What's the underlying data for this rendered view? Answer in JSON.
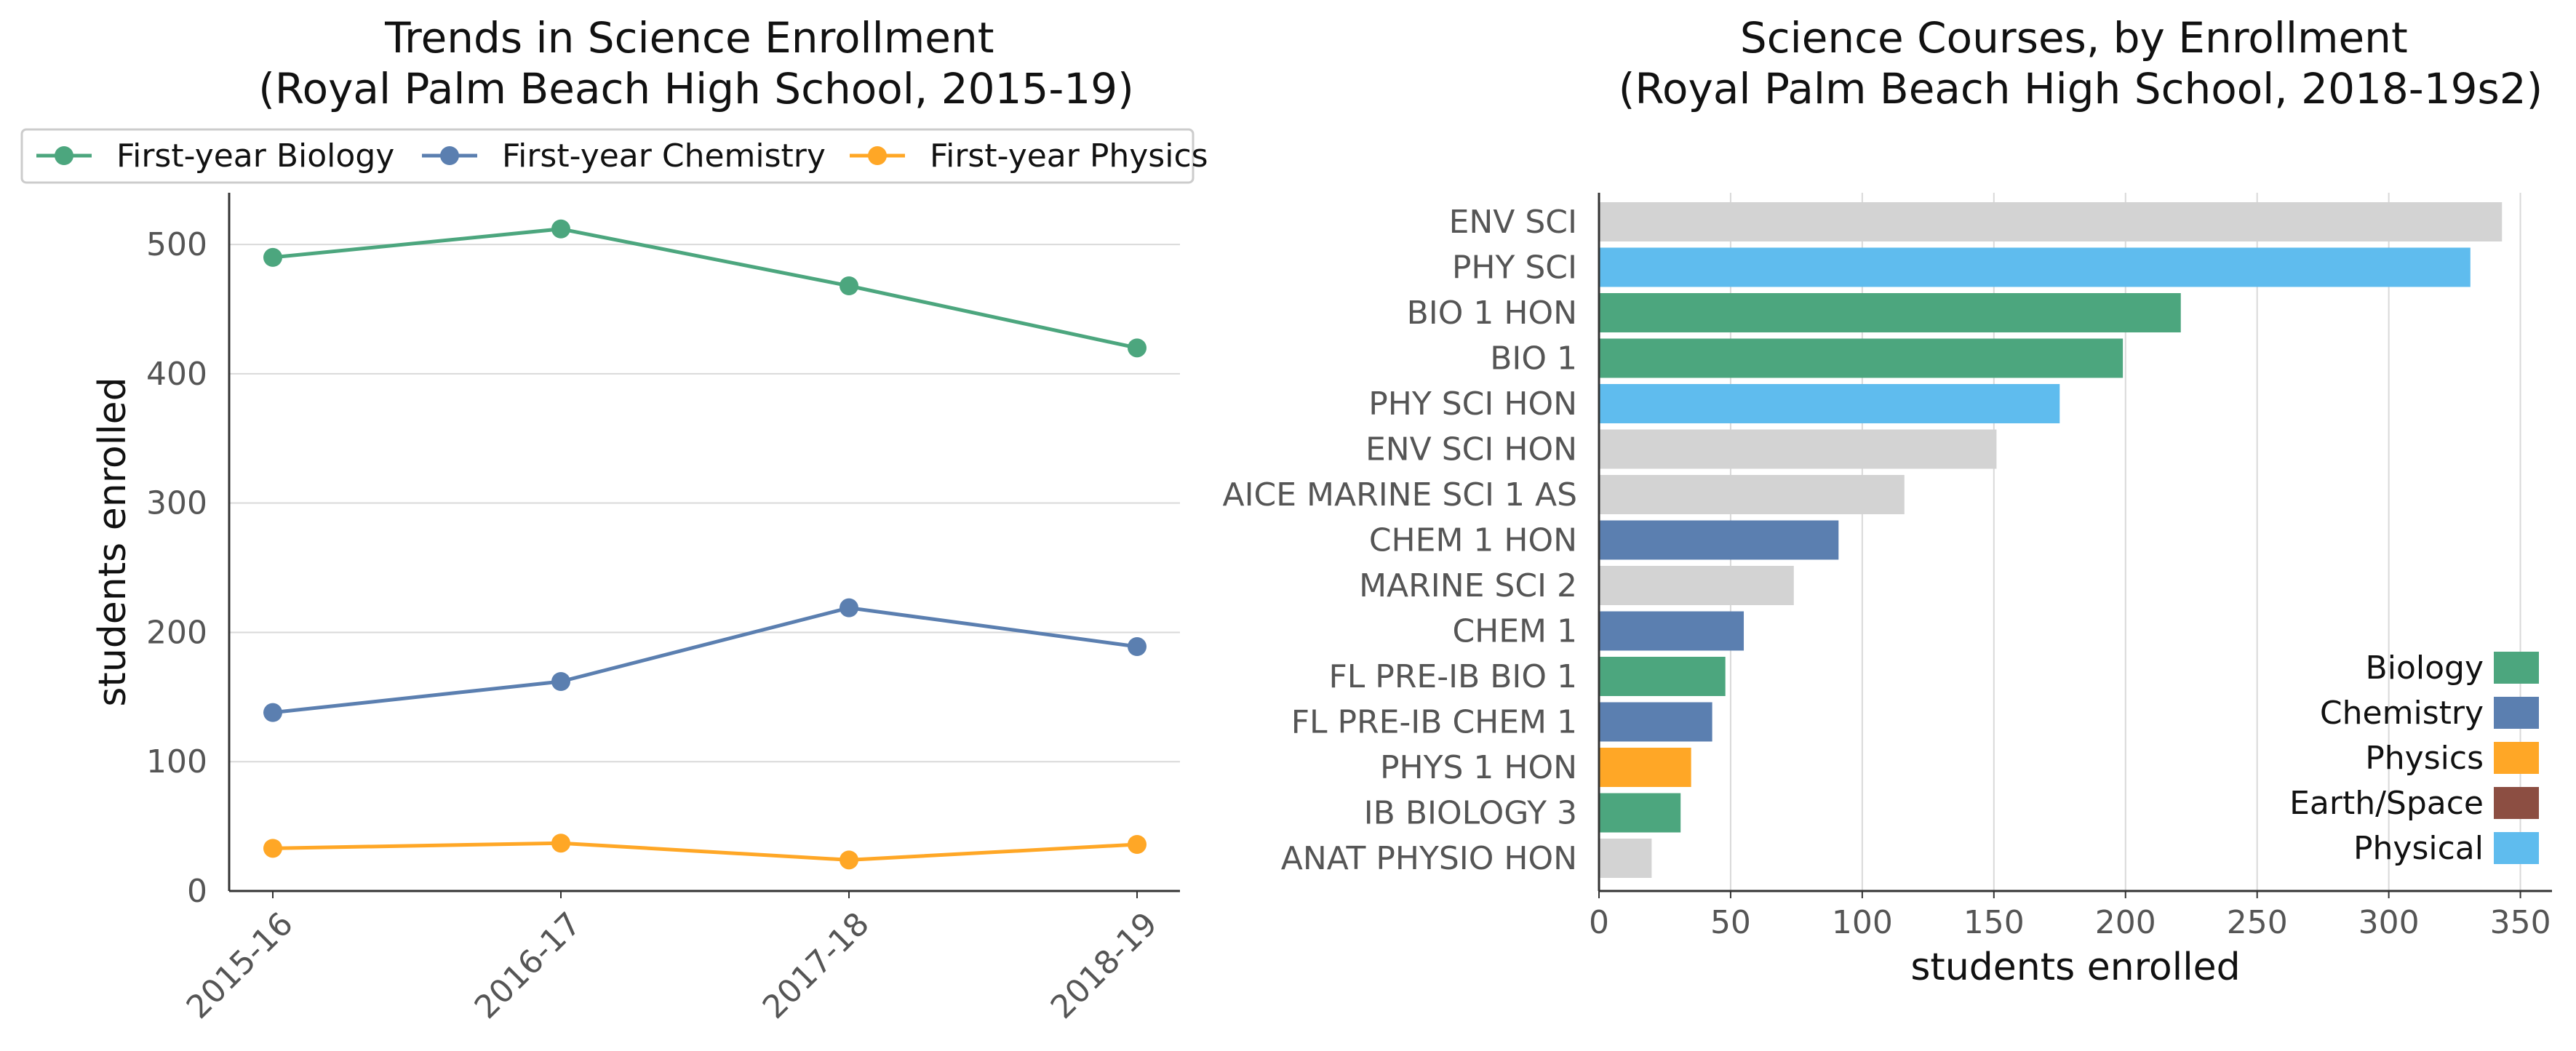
{
  "chart_data": [
    {
      "type": "line",
      "title": "Trends in Science Enrollment\n(Royal Palm Beach High School, 2015-19)",
      "xlabel": "",
      "ylabel": "students enrolled",
      "categories": [
        "2015-16",
        "2016-17",
        "2017-18",
        "2018-19"
      ],
      "ylim": [
        0,
        540
      ],
      "yticks": [
        0,
        100,
        200,
        300,
        400,
        500
      ],
      "grid": "horizontal",
      "legend": "top",
      "series": [
        {
          "name": "First-year Biology",
          "color": "#4ca67e",
          "values": [
            490,
            512,
            468,
            420
          ]
        },
        {
          "name": "First-year Chemistry",
          "color": "#5b7fb0",
          "values": [
            138,
            162,
            219,
            189
          ]
        },
        {
          "name": "First-year Physics",
          "color": "#ffa726",
          "values": [
            33,
            37,
            24,
            36
          ]
        }
      ]
    },
    {
      "type": "bar",
      "orientation": "horizontal",
      "title": "Science Courses, by Enrollment\n(Royal Palm Beach High School, 2018-19s2)",
      "xlabel": "students enrolled",
      "ylabel": "",
      "xlim": [
        0,
        362
      ],
      "xticks": [
        0,
        50,
        100,
        150,
        200,
        250,
        300,
        350
      ],
      "grid": "vertical",
      "legend": "bottom-right",
      "categories": [
        "ENV SCI",
        "PHY SCI",
        "BIO 1 HON",
        "BIO 1",
        "PHY SCI HON",
        "ENV SCI HON",
        "AICE MARINE SCI 1 AS",
        "CHEM 1 HON",
        "MARINE SCI 2",
        "CHEM 1",
        "FL PRE-IB BIO 1",
        "FL PRE-IB CHEM 1",
        "PHYS 1 HON",
        "IB BIOLOGY 3",
        "ANAT PHYSIO HON"
      ],
      "values": [
        343,
        331,
        221,
        199,
        175,
        151,
        116,
        91,
        74,
        55,
        48,
        43,
        35,
        31,
        20
      ],
      "bar_groups": [
        "Other",
        "Physical",
        "Biology",
        "Biology",
        "Physical",
        "Other",
        "Other",
        "Chemistry",
        "Other",
        "Chemistry",
        "Biology",
        "Chemistry",
        "Physics",
        "Biology",
        "Other"
      ],
      "group_colors": {
        "Biology": "#4ca67e",
        "Chemistry": "#5b7fb0",
        "Physics": "#ffa726",
        "Earth/Space": "#8c4e42",
        "Physical": "#5fbcee",
        "Other": "#d3d3d3"
      },
      "legend_entries": [
        "Biology",
        "Chemistry",
        "Physics",
        "Earth/Space",
        "Physical"
      ]
    }
  ]
}
